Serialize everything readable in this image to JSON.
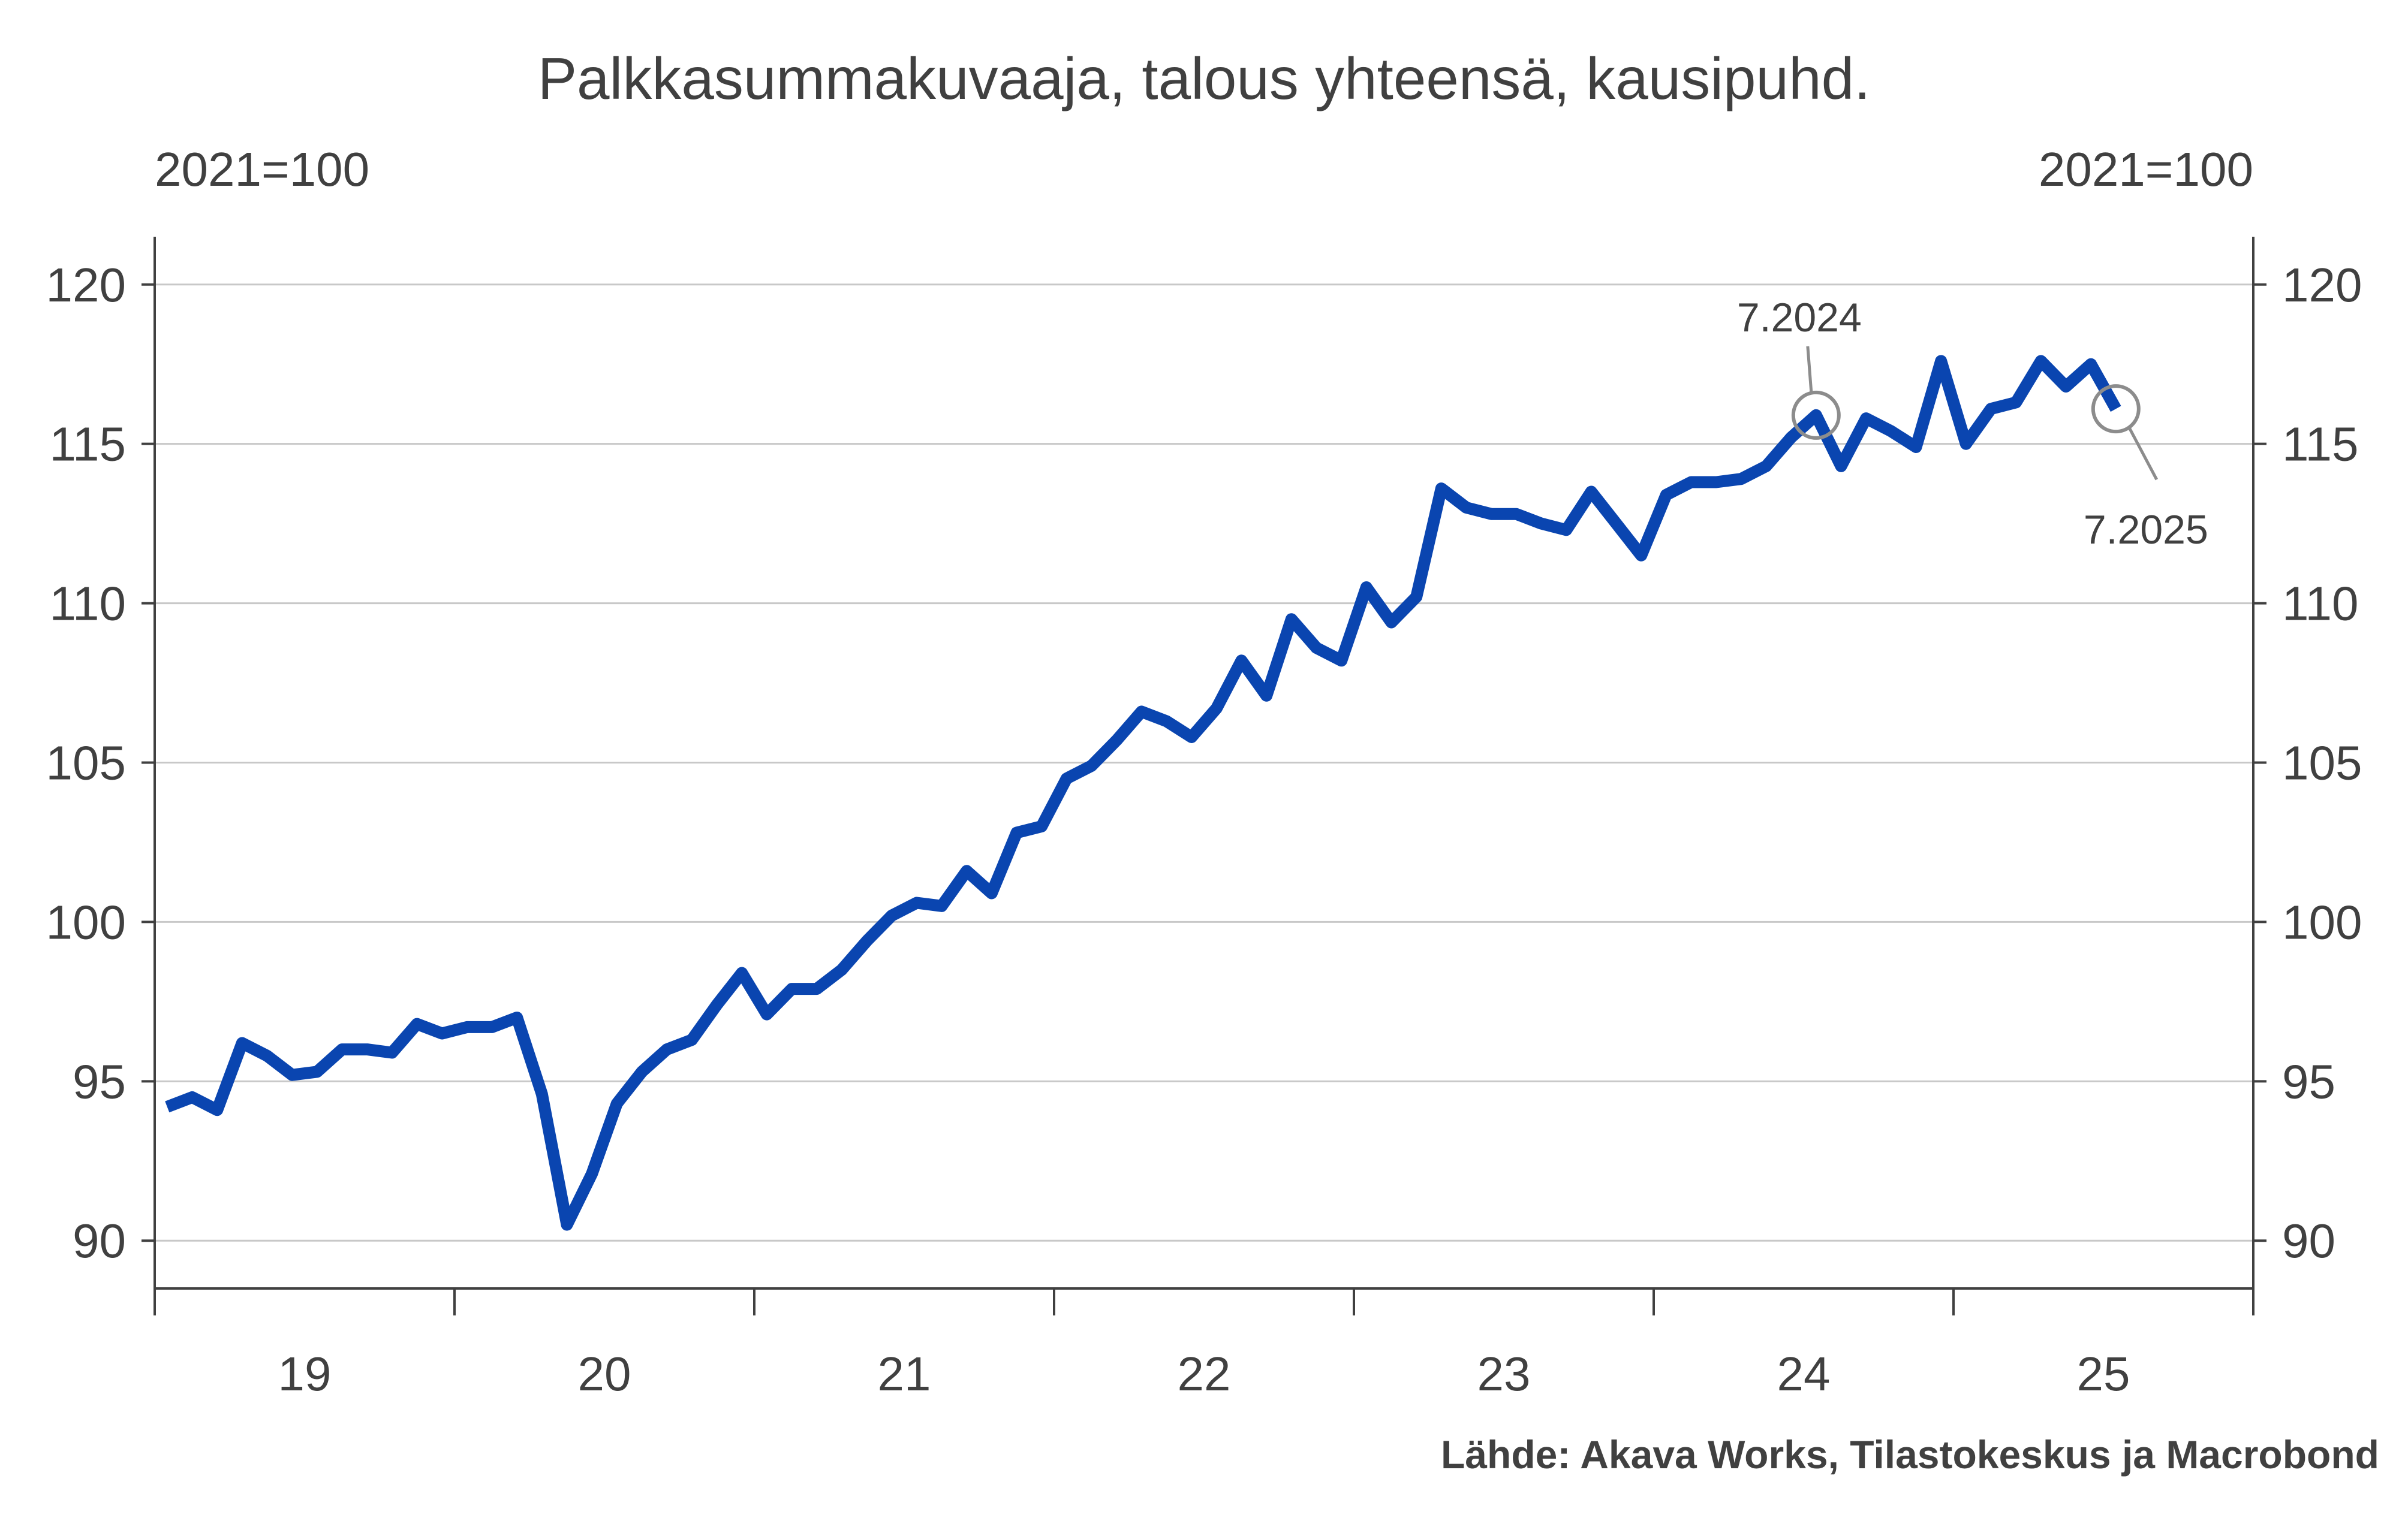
{
  "chart_data": {
    "type": "line",
    "title": "Palkkasummakuvaaja, talous yhteensä, kausipuhd.",
    "left_unit": "2021=100",
    "right_unit": "2021=100",
    "source": "Lähde: Akava Works, Tilastokeskus ja Macrobond",
    "ylim": [
      88.5,
      121.5
    ],
    "yticks": [
      "90",
      "95",
      "100",
      "105",
      "110",
      "115",
      "120"
    ],
    "xlim": [
      "2019-01",
      "2026-01"
    ],
    "xtick_labels": [
      "19",
      "20",
      "21",
      "22",
      "23",
      "24",
      "25"
    ],
    "grid": true,
    "legend": "none",
    "line_color": "#0a45b0",
    "series": [
      {
        "x": [
          "2019-01",
          "2019-02",
          "2019-03",
          "2019-04",
          "2019-05",
          "2019-06",
          "2019-07",
          "2019-08",
          "2019-09",
          "2019-10",
          "2019-11",
          "2019-12",
          "2020-01",
          "2020-02",
          "2020-03",
          "2020-04",
          "2020-05",
          "2020-06",
          "2020-07",
          "2020-08",
          "2020-09",
          "2020-10",
          "2020-11",
          "2020-12",
          "2021-01",
          "2021-02",
          "2021-03",
          "2021-04",
          "2021-05",
          "2021-06",
          "2021-07",
          "2021-08",
          "2021-09",
          "2021-10",
          "2021-11",
          "2021-12",
          "2022-01",
          "2022-02",
          "2022-03",
          "2022-04",
          "2022-05",
          "2022-06",
          "2022-07",
          "2022-08",
          "2022-09",
          "2022-10",
          "2022-11",
          "2022-12",
          "2023-01",
          "2023-02",
          "2023-03",
          "2023-04",
          "2023-05",
          "2023-06",
          "2023-07",
          "2023-08",
          "2023-09",
          "2023-10",
          "2023-11",
          "2023-12",
          "2024-01",
          "2024-02",
          "2024-03",
          "2024-04",
          "2024-05",
          "2024-06",
          "2024-07",
          "2024-08",
          "2024-09",
          "2024-10",
          "2024-11",
          "2024-12",
          "2025-01",
          "2025-02",
          "2025-03",
          "2025-04",
          "2025-05",
          "2025-06",
          "2025-07"
        ],
        "values": [
          94.2,
          94.5,
          94.1,
          96.2,
          95.8,
          95.2,
          95.3,
          96.0,
          96.0,
          95.9,
          96.8,
          96.5,
          96.7,
          96.7,
          97.0,
          94.6,
          90.5,
          92.1,
          94.3,
          95.3,
          96.0,
          96.3,
          97.4,
          98.4,
          97.1,
          97.9,
          97.9,
          98.5,
          99.4,
          100.2,
          100.6,
          100.5,
          101.6,
          100.9,
          102.8,
          103.0,
          104.5,
          104.9,
          105.7,
          106.6,
          106.3,
          105.8,
          106.7,
          108.2,
          107.1,
          109.5,
          108.6,
          108.2,
          110.5,
          109.4,
          110.2,
          113.6,
          113.0,
          112.8,
          112.8,
          112.5,
          112.3,
          113.5,
          112.5,
          111.5,
          113.4,
          113.8,
          113.8,
          113.9,
          114.3,
          115.2,
          115.9,
          114.3,
          115.8,
          115.4,
          114.9,
          117.6,
          115.0,
          116.1,
          116.3,
          117.6,
          116.8,
          117.5,
          116.1
        ]
      }
    ],
    "annotations": [
      {
        "label": "7.2024",
        "x": "2024-07",
        "y": 115.9,
        "label_position": "above"
      },
      {
        "label": "7.2025",
        "x": "2025-07",
        "y": 116.1,
        "label_position": "below-right"
      }
    ]
  }
}
